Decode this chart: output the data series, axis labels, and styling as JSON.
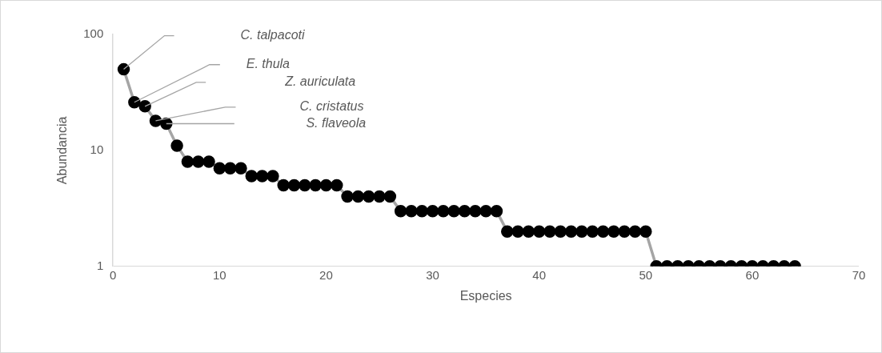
{
  "chart_data": {
    "type": "line",
    "xlabel": "Especies",
    "ylabel": "Abundancia",
    "log": "y",
    "xlim": [
      0,
      70
    ],
    "xticks": [
      0,
      10,
      20,
      30,
      40,
      50,
      60,
      70
    ],
    "ylim": [
      1,
      100
    ],
    "yticks": [
      1,
      10,
      100
    ],
    "grid": false,
    "legend": false,
    "marker": "circle",
    "line_style": "solid",
    "x": [
      1,
      2,
      3,
      4,
      5,
      6,
      7,
      8,
      9,
      10,
      11,
      12,
      13,
      14,
      15,
      16,
      17,
      18,
      19,
      20,
      21,
      22,
      23,
      24,
      25,
      26,
      27,
      28,
      29,
      30,
      31,
      32,
      33,
      34,
      35,
      36,
      37,
      38,
      39,
      40,
      41,
      42,
      43,
      44,
      45,
      46,
      47,
      48,
      49,
      50,
      51,
      52,
      53,
      54,
      55,
      56,
      57,
      58,
      59,
      60,
      61,
      62,
      63,
      64
    ],
    "series": [
      {
        "color": "#000000",
        "values": [
          50,
          26,
          24,
          18,
          17,
          11,
          8,
          8,
          8,
          7,
          7,
          7,
          6,
          6,
          6,
          5,
          5,
          5,
          5,
          5,
          5,
          4,
          4,
          4,
          4,
          4,
          3,
          3,
          3,
          3,
          3,
          3,
          3,
          3,
          3,
          3,
          2,
          2,
          2,
          2,
          2,
          2,
          2,
          2,
          2,
          2,
          2,
          2,
          2,
          2,
          1,
          1,
          1,
          1,
          1,
          1,
          1,
          1,
          1,
          1,
          1,
          1,
          1,
          1
        ]
      }
    ],
    "annotations": [
      "C. talpacoti",
      "E. thula",
      "Z. auriculata",
      "C. cristatus",
      "S. flaveola"
    ]
  }
}
